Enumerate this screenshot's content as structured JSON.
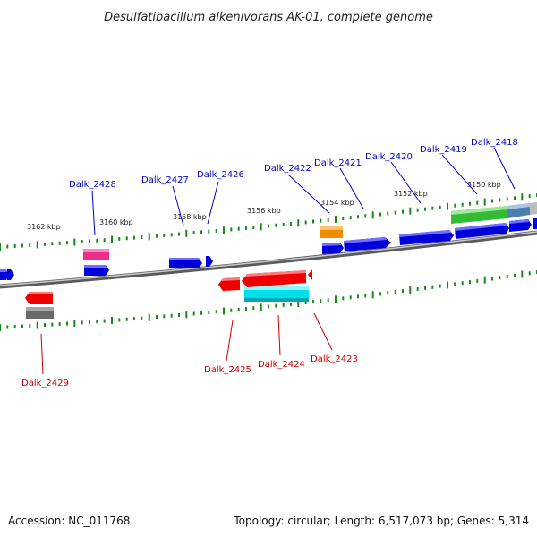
{
  "title": "Desulfatibacillum alkenivorans AK-01, complete genome",
  "footer": {
    "accession": "Accession: NC_011768",
    "summary": "Topology: circular; Length: 6,517,073 bp; Genes: 5,314"
  },
  "scale_labels": [
    "3162 kbp",
    "3160 kbp",
    "3158 kbp",
    "3156 kbp",
    "3154 kbp",
    "3152 kbp",
    "3150 kbp"
  ],
  "gene_labels_top": [
    "Dalk_2428",
    "Dalk_2427",
    "Dalk_2426",
    "Dalk_2422",
    "Dalk_2421",
    "Dalk_2420",
    "Dalk_2419",
    "Dalk_2418"
  ],
  "gene_labels_bottom": [
    "Dalk_2429",
    "Dalk_2425",
    "Dalk_2424",
    "Dalk_2423"
  ],
  "colors": {
    "forward_cds": "#0000dd",
    "reverse_cds": "#ee0000",
    "tick": "#1a8a1a",
    "backbone": "#808080",
    "label_forward": "#0000cc",
    "label_reverse": "#cc0000",
    "track_pink": "#ee2d8a",
    "track_orange": "#f08c00",
    "track_green": "#33bb33",
    "track_steel": "#4a7fb0",
    "track_cyan": "#00e0e8",
    "track_gray": "#6a6a6a"
  }
}
